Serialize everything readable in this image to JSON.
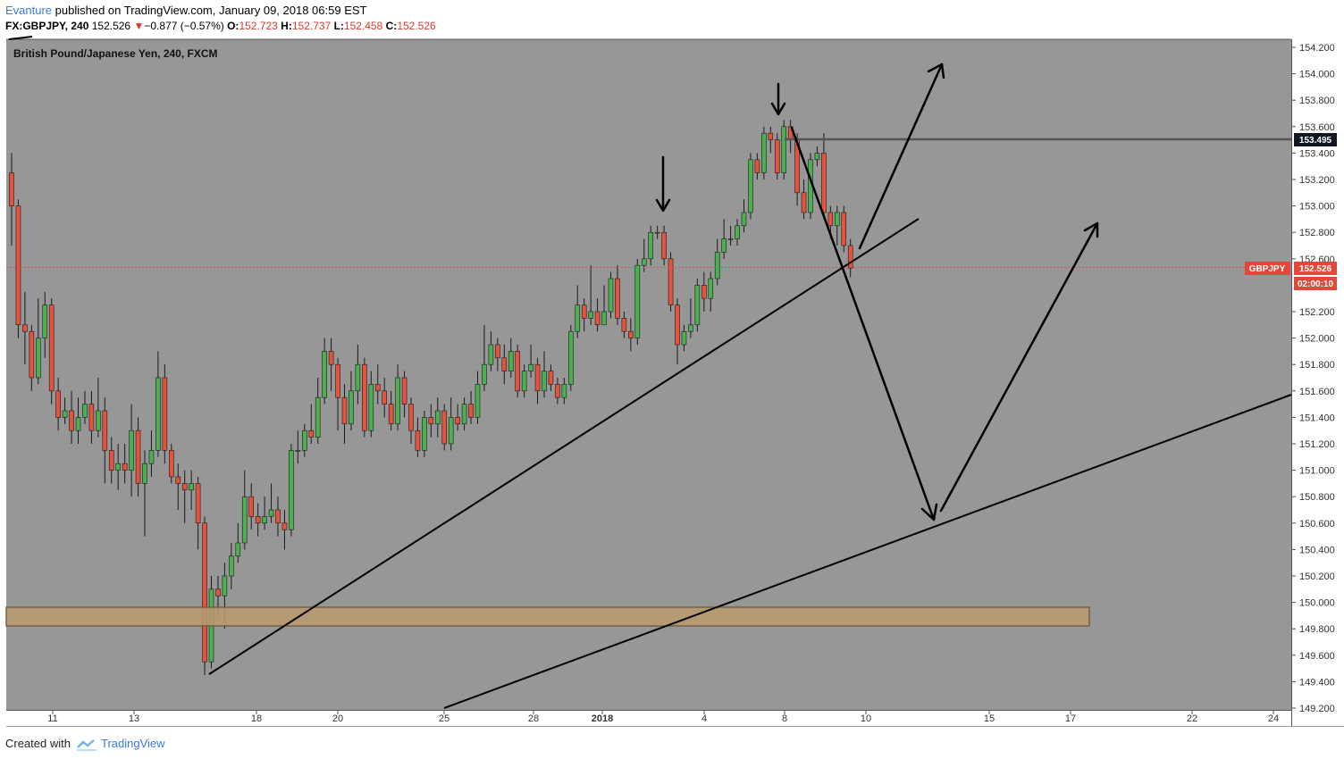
{
  "header": {
    "author": "Evanture",
    "published": " published on TradingView.com, January 09, 2018 06:59 EST",
    "symbol": "FX:GBPJPY, 240",
    "last": "152.526",
    "change_arrow": "▼",
    "change": "−0.877 (−0.57%)",
    "o_label": "O:",
    "o": "152.723",
    "h_label": "H:",
    "h": "152.737",
    "l_label": "L:",
    "l": "152.458",
    "c_label": "C:",
    "c": "152.526"
  },
  "footer": {
    "created_with": "Created with",
    "brand": "TradingView"
  },
  "chart_data": {
    "type": "candlestick",
    "title": "British Pound/Japanese Yen, 240, FXCM",
    "ylim": [
      149.3,
      154.3
    ],
    "y_ticks": [
      "154.200",
      "154.000",
      "153.800",
      "153.600",
      "153.400",
      "153.200",
      "153.000",
      "152.800",
      "152.600",
      "152.200",
      "152.000",
      "151.800",
      "151.600",
      "151.400",
      "151.200",
      "151.000",
      "150.800",
      "150.600",
      "150.400",
      "150.200",
      "150.000",
      "149.800",
      "149.600",
      "149.400",
      "149.200"
    ],
    "x_ticks": [
      "11",
      "13",
      "18",
      "20",
      "25",
      "28",
      "2018",
      "4",
      "8",
      "10",
      "15",
      "17",
      "22",
      "24"
    ],
    "grid": false,
    "colors": {
      "background": "#979797",
      "up": "#4caf50",
      "down": "#e5533d",
      "zone": "#b89a6e",
      "price_label": "#e0483a",
      "level_label": "#131722"
    },
    "labels": {
      "horizontal_level": "153.495",
      "symbol_tag": "GBPJPY",
      "last_price": "152.526",
      "countdown": "02:00:10"
    },
    "horizontal_level": 153.495,
    "last_price": 152.526,
    "support_zone": [
      149.82,
      149.97
    ],
    "candles": [
      [
        153.25,
        153.0,
        153.4,
        152.7
      ],
      [
        153.0,
        152.1,
        153.05,
        152.0
      ],
      [
        152.1,
        152.05,
        152.35,
        151.8
      ],
      [
        152.05,
        151.7,
        152.1,
        151.6
      ],
      [
        151.7,
        152.0,
        152.3,
        151.65
      ],
      [
        152.0,
        152.25,
        152.35,
        151.85
      ],
      [
        152.25,
        151.6,
        152.3,
        151.5
      ],
      [
        151.6,
        151.4,
        151.7,
        151.3
      ],
      [
        151.4,
        151.45,
        151.55,
        151.35
      ],
      [
        151.45,
        151.3,
        151.6,
        151.2
      ],
      [
        151.3,
        151.4,
        151.55,
        151.2
      ],
      [
        151.4,
        151.5,
        151.6,
        151.35
      ],
      [
        151.5,
        151.3,
        151.6,
        151.2
      ],
      [
        151.3,
        151.45,
        151.7,
        151.25
      ],
      [
        151.45,
        151.15,
        151.55,
        150.9
      ],
      [
        151.15,
        151.0,
        151.25,
        150.9
      ],
      [
        151.0,
        151.05,
        151.2,
        150.85
      ],
      [
        151.05,
        151.0,
        151.2,
        150.9
      ],
      [
        151.0,
        151.3,
        151.5,
        150.8
      ],
      [
        151.3,
        150.9,
        151.4,
        150.8
      ],
      [
        150.9,
        151.05,
        151.15,
        150.5
      ],
      [
        151.05,
        151.15,
        151.3,
        150.95
      ],
      [
        151.15,
        151.7,
        151.9,
        151.1
      ],
      [
        151.7,
        151.15,
        151.8,
        151.05
      ],
      [
        151.15,
        150.95,
        151.2,
        150.9
      ],
      [
        150.95,
        150.9,
        151.05,
        150.7
      ],
      [
        150.9,
        150.85,
        151.0,
        150.6
      ],
      [
        150.85,
        150.9,
        151.0,
        150.7
      ],
      [
        150.9,
        150.6,
        150.95,
        150.4
      ],
      [
        150.6,
        149.55,
        150.65,
        149.45
      ],
      [
        149.55,
        150.1,
        150.2,
        149.5
      ],
      [
        150.1,
        150.05,
        150.2,
        149.9
      ],
      [
        150.05,
        150.2,
        150.3,
        149.8
      ],
      [
        150.2,
        150.35,
        150.45,
        150.1
      ],
      [
        150.35,
        150.45,
        150.6,
        150.3
      ],
      [
        150.45,
        150.8,
        151.0,
        150.4
      ],
      [
        150.8,
        150.65,
        150.9,
        150.55
      ],
      [
        150.65,
        150.6,
        150.75,
        150.5
      ],
      [
        150.6,
        150.65,
        150.8,
        150.55
      ],
      [
        150.65,
        150.7,
        150.9,
        150.6
      ],
      [
        150.7,
        150.6,
        150.8,
        150.5
      ],
      [
        150.6,
        150.55,
        150.7,
        150.4
      ],
      [
        150.55,
        151.15,
        151.2,
        150.5
      ],
      [
        151.15,
        151.15,
        151.3,
        151.05
      ],
      [
        151.15,
        151.3,
        151.35,
        151.1
      ],
      [
        151.3,
        151.25,
        151.5,
        151.2
      ],
      [
        151.25,
        151.55,
        151.7,
        151.2
      ],
      [
        151.55,
        151.9,
        152.0,
        151.5
      ],
      [
        151.9,
        151.8,
        152.0,
        151.6
      ],
      [
        151.8,
        151.55,
        151.85,
        151.3
      ],
      [
        151.55,
        151.35,
        151.65,
        151.2
      ],
      [
        151.35,
        151.6,
        151.75,
        151.3
      ],
      [
        151.6,
        151.8,
        151.95,
        151.5
      ],
      [
        151.8,
        151.3,
        151.85,
        151.25
      ],
      [
        151.3,
        151.65,
        151.75,
        151.25
      ],
      [
        151.65,
        151.6,
        151.8,
        151.5
      ],
      [
        151.6,
        151.5,
        151.7,
        151.4
      ],
      [
        151.5,
        151.35,
        151.6,
        151.3
      ],
      [
        151.35,
        151.7,
        151.8,
        151.3
      ],
      [
        151.7,
        151.5,
        151.75,
        151.4
      ],
      [
        151.5,
        151.3,
        151.55,
        151.2
      ],
      [
        151.3,
        151.15,
        151.4,
        151.1
      ],
      [
        151.15,
        151.4,
        151.45,
        151.1
      ],
      [
        151.4,
        151.35,
        151.5,
        151.25
      ],
      [
        151.35,
        151.45,
        151.55,
        151.25
      ],
      [
        151.45,
        151.2,
        151.5,
        151.15
      ],
      [
        151.2,
        151.4,
        151.55,
        151.15
      ],
      [
        151.4,
        151.35,
        151.5,
        151.3
      ],
      [
        151.35,
        151.5,
        151.55,
        151.3
      ],
      [
        151.5,
        151.4,
        151.6,
        151.35
      ],
      [
        151.4,
        151.65,
        151.75,
        151.35
      ],
      [
        151.65,
        151.8,
        152.1,
        151.6
      ],
      [
        151.8,
        151.95,
        152.05,
        151.75
      ],
      [
        151.95,
        151.85,
        152.0,
        151.75
      ],
      [
        151.85,
        151.75,
        151.95,
        151.65
      ],
      [
        151.75,
        151.9,
        152.0,
        151.7
      ],
      [
        151.9,
        151.6,
        151.95,
        151.55
      ],
      [
        151.6,
        151.75,
        151.8,
        151.55
      ],
      [
        151.75,
        151.8,
        151.95,
        151.7
      ],
      [
        151.8,
        151.6,
        151.85,
        151.5
      ],
      [
        151.6,
        151.75,
        151.9,
        151.55
      ],
      [
        151.75,
        151.65,
        151.8,
        151.6
      ],
      [
        151.65,
        151.55,
        151.7,
        151.5
      ],
      [
        151.55,
        151.65,
        151.7,
        151.5
      ],
      [
        151.65,
        152.05,
        152.1,
        151.6
      ],
      [
        152.05,
        152.25,
        152.4,
        152.0
      ],
      [
        152.25,
        152.15,
        152.3,
        152.05
      ],
      [
        152.15,
        152.2,
        152.55,
        152.1
      ],
      [
        152.2,
        152.1,
        152.3,
        152.05
      ],
      [
        152.1,
        152.2,
        152.4,
        152.1
      ],
      [
        152.2,
        152.45,
        152.5,
        152.15
      ],
      [
        152.45,
        152.15,
        152.55,
        152.1
      ],
      [
        152.15,
        152.05,
        152.2,
        152.0
      ],
      [
        152.05,
        152.0,
        152.15,
        151.9
      ],
      [
        152.0,
        152.55,
        152.6,
        151.95
      ],
      [
        152.55,
        152.6,
        152.75,
        152.5
      ],
      [
        152.6,
        152.8,
        152.85,
        152.55
      ],
      [
        152.8,
        152.8,
        152.85,
        152.75
      ],
      [
        152.8,
        152.6,
        152.85,
        152.55
      ],
      [
        152.6,
        152.25,
        152.65,
        152.2
      ],
      [
        152.25,
        151.95,
        152.3,
        151.8
      ],
      [
        151.95,
        152.05,
        152.1,
        151.9
      ],
      [
        152.05,
        152.1,
        152.3,
        152.0
      ],
      [
        152.1,
        152.4,
        152.45,
        152.05
      ],
      [
        152.4,
        152.3,
        152.5,
        152.2
      ],
      [
        152.3,
        152.45,
        152.5,
        152.2
      ],
      [
        152.45,
        152.65,
        152.75,
        152.4
      ],
      [
        152.65,
        152.75,
        152.9,
        152.6
      ],
      [
        152.75,
        152.75,
        152.85,
        152.7
      ],
      [
        152.75,
        152.85,
        152.9,
        152.7
      ],
      [
        152.85,
        152.95,
        153.05,
        152.8
      ],
      [
        152.95,
        153.35,
        153.4,
        152.9
      ],
      [
        153.35,
        153.25,
        153.4,
        153.2
      ],
      [
        153.25,
        153.55,
        153.6,
        153.2
      ],
      [
        153.55,
        153.5,
        153.6,
        153.4
      ],
      [
        153.5,
        153.25,
        153.55,
        153.2
      ],
      [
        153.25,
        153.6,
        153.65,
        153.2
      ],
      [
        153.6,
        153.5,
        153.65,
        153.4
      ],
      [
        153.5,
        153.1,
        153.55,
        153.0
      ],
      [
        153.1,
        152.95,
        153.2,
        152.9
      ],
      [
        152.95,
        153.35,
        153.4,
        152.9
      ],
      [
        153.35,
        153.4,
        153.45,
        153.3
      ],
      [
        153.4,
        152.95,
        153.55,
        152.9
      ],
      [
        152.95,
        152.85,
        153.0,
        152.75
      ],
      [
        152.85,
        152.95,
        153.0,
        152.7
      ],
      [
        152.95,
        152.7,
        153.0,
        152.65
      ],
      [
        152.7,
        152.53,
        152.75,
        152.46
      ]
    ]
  }
}
